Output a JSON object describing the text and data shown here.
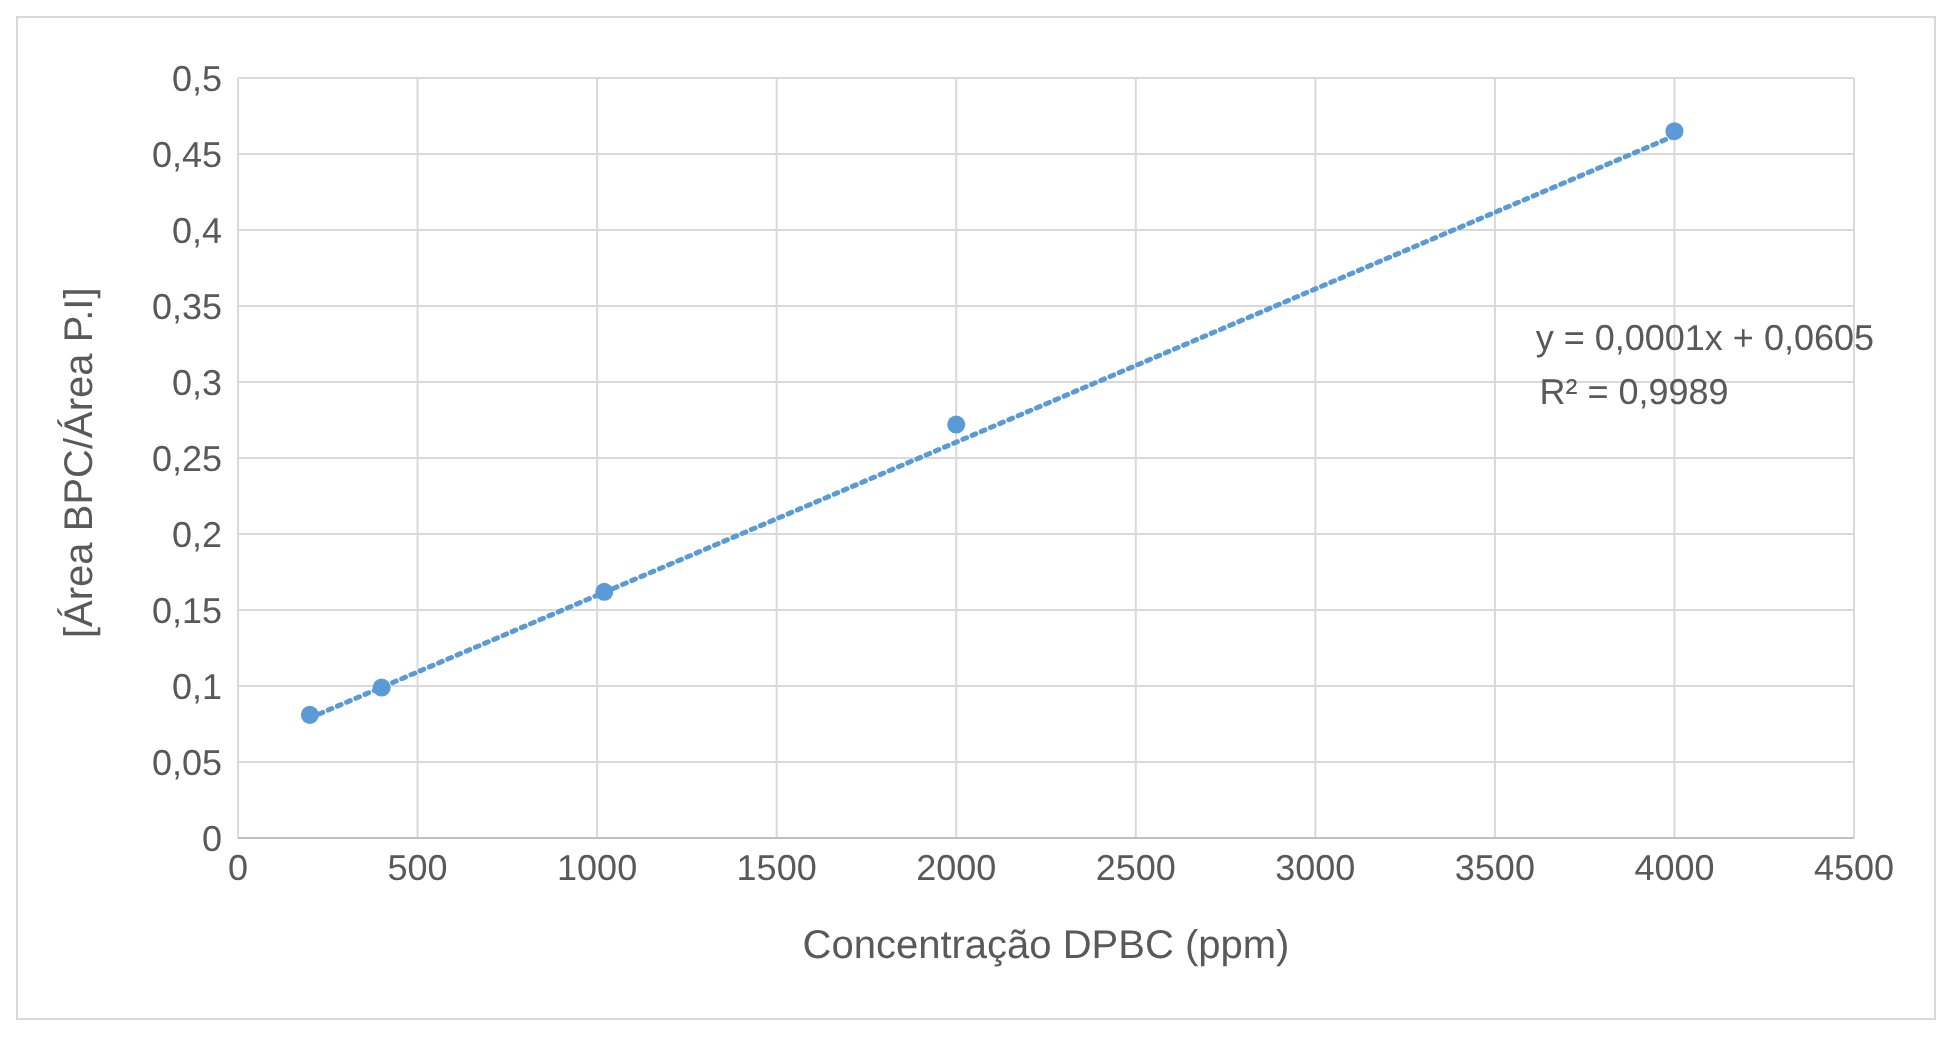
{
  "chart_data": {
    "type": "scatter",
    "xlabel": "Concentração DPBC (ppm)",
    "ylabel": "[Área BPC/Área P.I]",
    "x": [
      200,
      400,
      1020,
      2000,
      4000
    ],
    "series": [
      {
        "color": "#5b9bd5",
        "values": [
          0.081,
          0.099,
          0.162,
          0.272,
          0.465
        ],
        "marker": "circle"
      },
      {
        "type": "line",
        "color": "#5b9bd5",
        "x": [
          200,
          4000
        ],
        "values": [
          0.079,
          0.462
        ],
        "line_style": "dotted",
        "marker": "none"
      }
    ],
    "xlim": [
      0,
      4500
    ],
    "xticks": [
      0,
      500,
      1000,
      1500,
      2000,
      2500,
      3000,
      3500,
      4000,
      4500
    ],
    "ylim": [
      0,
      0.5
    ],
    "yticks": [
      0,
      {
        "value": 0.05,
        "label": "0,05"
      },
      {
        "value": 0.1,
        "label": "0,1"
      },
      {
        "value": 0.15,
        "label": "0,15"
      },
      {
        "value": 0.2,
        "label": "0,2"
      },
      {
        "value": 0.25,
        "label": "0,25"
      },
      {
        "value": 0.3,
        "label": "0,3"
      },
      {
        "value": 0.35,
        "label": "0,35"
      },
      {
        "value": 0.4,
        "label": "0,4"
      },
      {
        "value": 0.45,
        "label": "0,45"
      },
      {
        "value": 0.5,
        "label": "0,5"
      }
    ],
    "grid": true,
    "annotations": [
      "y = 0,0001x + 0,0605",
      "R² = 0,9989"
    ]
  }
}
